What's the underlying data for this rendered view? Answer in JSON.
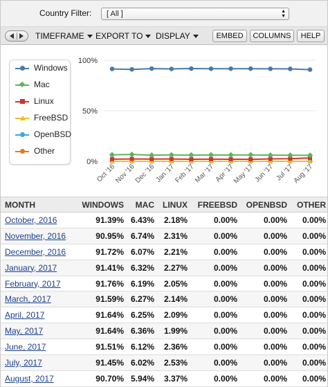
{
  "filter": {
    "label": "Country Filter:",
    "value": "[ All ]"
  },
  "toolbar": {
    "menus": [
      "TIMEFRAME",
      "EXPORT TO",
      "DISPLAY"
    ],
    "buttons": [
      "EMBED",
      "COLUMNS",
      "HELP"
    ]
  },
  "colors": {
    "Windows": "#4a79a5",
    "Mac": "#5fb35d",
    "Linux": "#d2322d",
    "FreeBSD": "#e8c22b",
    "OpenBSD": "#3fa6d8",
    "Other": "#e07b22"
  },
  "chart_data": {
    "type": "line",
    "categories": [
      "Oct '16",
      "Nov '16",
      "Dec '16",
      "Jan '17",
      "Feb '17",
      "Mar '17",
      "Apr '17",
      "May '17",
      "Jun '17",
      "Jul '17",
      "Aug '17"
    ],
    "yticks": [
      "100%",
      "50%",
      "0%"
    ],
    "ylim": [
      0,
      100
    ],
    "legend_position": "left",
    "series": [
      {
        "name": "Windows",
        "values": [
          91.39,
          90.95,
          91.72,
          91.41,
          91.76,
          91.59,
          91.64,
          91.64,
          91.51,
          91.45,
          90.7
        ]
      },
      {
        "name": "Mac",
        "values": [
          6.43,
          6.74,
          6.07,
          6.32,
          6.19,
          6.27,
          6.25,
          6.36,
          6.12,
          6.02,
          5.94
        ]
      },
      {
        "name": "Linux",
        "values": [
          2.18,
          2.31,
          2.21,
          2.27,
          2.05,
          2.14,
          2.09,
          1.99,
          2.36,
          2.53,
          3.37
        ]
      },
      {
        "name": "FreeBSD",
        "values": [
          0,
          0,
          0,
          0,
          0,
          0,
          0,
          0,
          0,
          0,
          0
        ]
      },
      {
        "name": "OpenBSD",
        "values": [
          0,
          0,
          0,
          0,
          0,
          0,
          0,
          0,
          0,
          0,
          0
        ]
      },
      {
        "name": "Other",
        "values": [
          0,
          0,
          0,
          0,
          0,
          0,
          0,
          0,
          0,
          0,
          0
        ]
      }
    ]
  },
  "table": {
    "headers": [
      "MONTH",
      "WINDOWS",
      "MAC",
      "LINUX",
      "FREEBSD",
      "OPENBSD",
      "OTHER"
    ],
    "rows": [
      [
        "October, 2016",
        "91.39%",
        "6.43%",
        "2.18%",
        "0.00%",
        "0.00%",
        "0.00%"
      ],
      [
        "November, 2016",
        "90.95%",
        "6.74%",
        "2.31%",
        "0.00%",
        "0.00%",
        "0.00%"
      ],
      [
        "December, 2016",
        "91.72%",
        "6.07%",
        "2.21%",
        "0.00%",
        "0.00%",
        "0.00%"
      ],
      [
        "January, 2017",
        "91.41%",
        "6.32%",
        "2.27%",
        "0.00%",
        "0.00%",
        "0.00%"
      ],
      [
        "February, 2017",
        "91.76%",
        "6.19%",
        "2.05%",
        "0.00%",
        "0.00%",
        "0.00%"
      ],
      [
        "March, 2017",
        "91.59%",
        "6.27%",
        "2.14%",
        "0.00%",
        "0.00%",
        "0.00%"
      ],
      [
        "April, 2017",
        "91.64%",
        "6.25%",
        "2.09%",
        "0.00%",
        "0.00%",
        "0.00%"
      ],
      [
        "May, 2017",
        "91.64%",
        "6.36%",
        "1.99%",
        "0.00%",
        "0.00%",
        "0.00%"
      ],
      [
        "June, 2017",
        "91.51%",
        "6.12%",
        "2.36%",
        "0.00%",
        "0.00%",
        "0.00%"
      ],
      [
        "July, 2017",
        "91.45%",
        "6.02%",
        "2.53%",
        "0.00%",
        "0.00%",
        "0.00%"
      ],
      [
        "August, 2017",
        "90.70%",
        "5.94%",
        "3.37%",
        "0.00%",
        "0.00%",
        "0.00%"
      ]
    ]
  }
}
